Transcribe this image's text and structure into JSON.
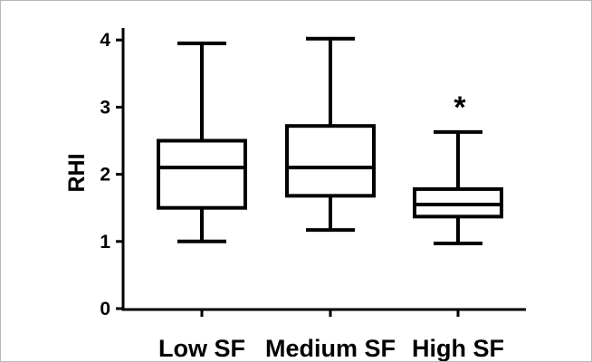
{
  "chart_data": {
    "type": "box",
    "title": "",
    "xlabel": "",
    "ylabel": "RHI",
    "ylim": [
      0,
      4.3
    ],
    "yticks": [
      "0",
      "1",
      "2",
      "3",
      "4"
    ],
    "grid": false,
    "legend": "none",
    "categories": [
      "Low SF",
      "Medium SF",
      "High SF"
    ],
    "boxes": [
      {
        "category": "Low SF",
        "min": 1.0,
        "q1": 1.5,
        "median": 2.1,
        "q3": 2.5,
        "max": 3.95,
        "annotation": ""
      },
      {
        "category": "Medium SF",
        "min": 1.17,
        "q1": 1.68,
        "median": 2.1,
        "q3": 2.72,
        "max": 4.02,
        "annotation": ""
      },
      {
        "category": "High SF",
        "min": 0.97,
        "q1": 1.37,
        "median": 1.55,
        "q3": 1.78,
        "max": 2.63,
        "annotation": "*"
      }
    ],
    "colors": {
      "stroke": "#000000",
      "fill": "#ffffff"
    }
  }
}
